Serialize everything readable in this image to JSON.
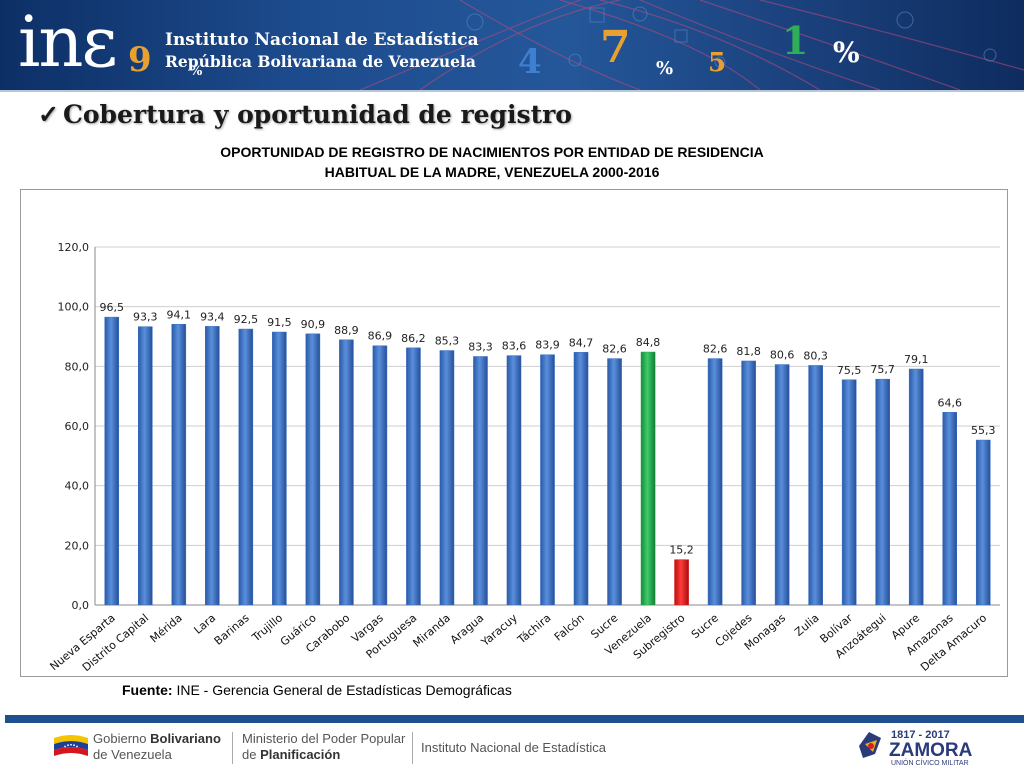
{
  "header": {
    "logo_text": "inɛ",
    "logo_digit": "9",
    "institution_name": "Instituto Nacional de Estadística",
    "institution_sub": "República Bolivariana de Venezuela",
    "decor_glyphs": [
      "4",
      "7",
      "%",
      "5",
      "1",
      "%",
      "%"
    ]
  },
  "section_title": "Cobertura y oportunidad de registro",
  "chart_title_line1": "OPORTUNIDAD DE REGISTRO DE NACIMIENTOS POR ENTIDAD DE RESIDENCIA",
  "chart_title_line2": "HABITUAL DE LA MADRE, VENEZUELA 2000-2016",
  "chart_data": {
    "type": "bar",
    "categories": [
      "Nueva Esparta",
      "Distrito Capital",
      "Mérida",
      "Lara",
      "Barinas",
      "Trujillo",
      "Guárico",
      "Carabobo",
      "Vargas",
      "Portuguesa",
      "Miranda",
      "Aragua",
      "Yaracuy",
      "Táchira",
      "Falcón",
      "Sucre",
      "Venezuela",
      "Subregistro",
      "Sucre",
      "Cojedes",
      "Monagas",
      "Zulia",
      "Bolívar",
      "Anzoátegui",
      "Apure",
      "Amazonas",
      "Delta Amacuro"
    ],
    "values": [
      96.5,
      93.3,
      94.1,
      93.4,
      92.5,
      91.5,
      90.9,
      88.9,
      86.9,
      86.2,
      85.3,
      83.3,
      83.6,
      83.9,
      84.7,
      82.6,
      84.8,
      15.2,
      82.6,
      81.8,
      80.6,
      80.3,
      75.5,
      75.7,
      79.1,
      64.6,
      55.3
    ],
    "value_labels": [
      "96,5",
      "93,3",
      "94,1",
      "93,4",
      "92,5",
      "91,5",
      "90,9",
      "88,9",
      "86,9",
      "86,2",
      "85,3",
      "83,3",
      "83,6",
      "83,9",
      "84,7",
      "82,6",
      "84,8",
      "15,2",
      "82,6",
      "81,8",
      "80,6",
      "80,3",
      "75,5",
      "75,7",
      "79,1",
      "64,6",
      "55,3"
    ],
    "bar_colors": [
      "#3a6fc2",
      "#3a6fc2",
      "#3a6fc2",
      "#3a6fc2",
      "#3a6fc2",
      "#3a6fc2",
      "#3a6fc2",
      "#3a6fc2",
      "#3a6fc2",
      "#3a6fc2",
      "#3a6fc2",
      "#3a6fc2",
      "#3a6fc2",
      "#3a6fc2",
      "#3a6fc2",
      "#3a6fc2",
      "#1fa84a",
      "#e01a1a",
      "#3a6fc2",
      "#3a6fc2",
      "#3a6fc2",
      "#3a6fc2",
      "#3a6fc2",
      "#3a6fc2",
      "#3a6fc2",
      "#3a6fc2",
      "#3a6fc2"
    ],
    "yticks": [
      0,
      20,
      40,
      60,
      80,
      100,
      120
    ],
    "ytick_labels": [
      "0,0",
      "20,0",
      "40,0",
      "60,0",
      "80,0",
      "100,0",
      "120,0"
    ],
    "ylim": [
      0,
      120
    ],
    "grid": true,
    "title": "OPORTUNIDAD DE REGISTRO DE NACIMIENTOS POR ENTIDAD DE RESIDENCIA HABITUAL DE LA MADRE, VENEZUELA 2000-2016",
    "xlabel": "",
    "ylabel": ""
  },
  "source": {
    "label": "Fuente:",
    "text": "INE - Gerencia General de Estadísticas Demográficas"
  },
  "footer": {
    "gob_line1": "Gobierno",
    "gob_line1_bold": "Bolivariano",
    "gob_line2": "de Venezuela",
    "min_line1": "Ministerio del Poder Popular",
    "min_line2_prefix": "de",
    "min_line2_bold": "Planificación",
    "ine_name": "Instituto Nacional de Estadística",
    "zamora_years": "1817 - 2017",
    "zamora_name": "ZAMORA",
    "zamora_sub": "UNIÓN CÍVICO MILITAR"
  },
  "colors": {
    "bar_default": "#3a6fc2",
    "bar_highlight_national": "#1fa84a",
    "bar_highlight_subregistro": "#e01a1a",
    "header_blue": "#1d4c8e"
  }
}
